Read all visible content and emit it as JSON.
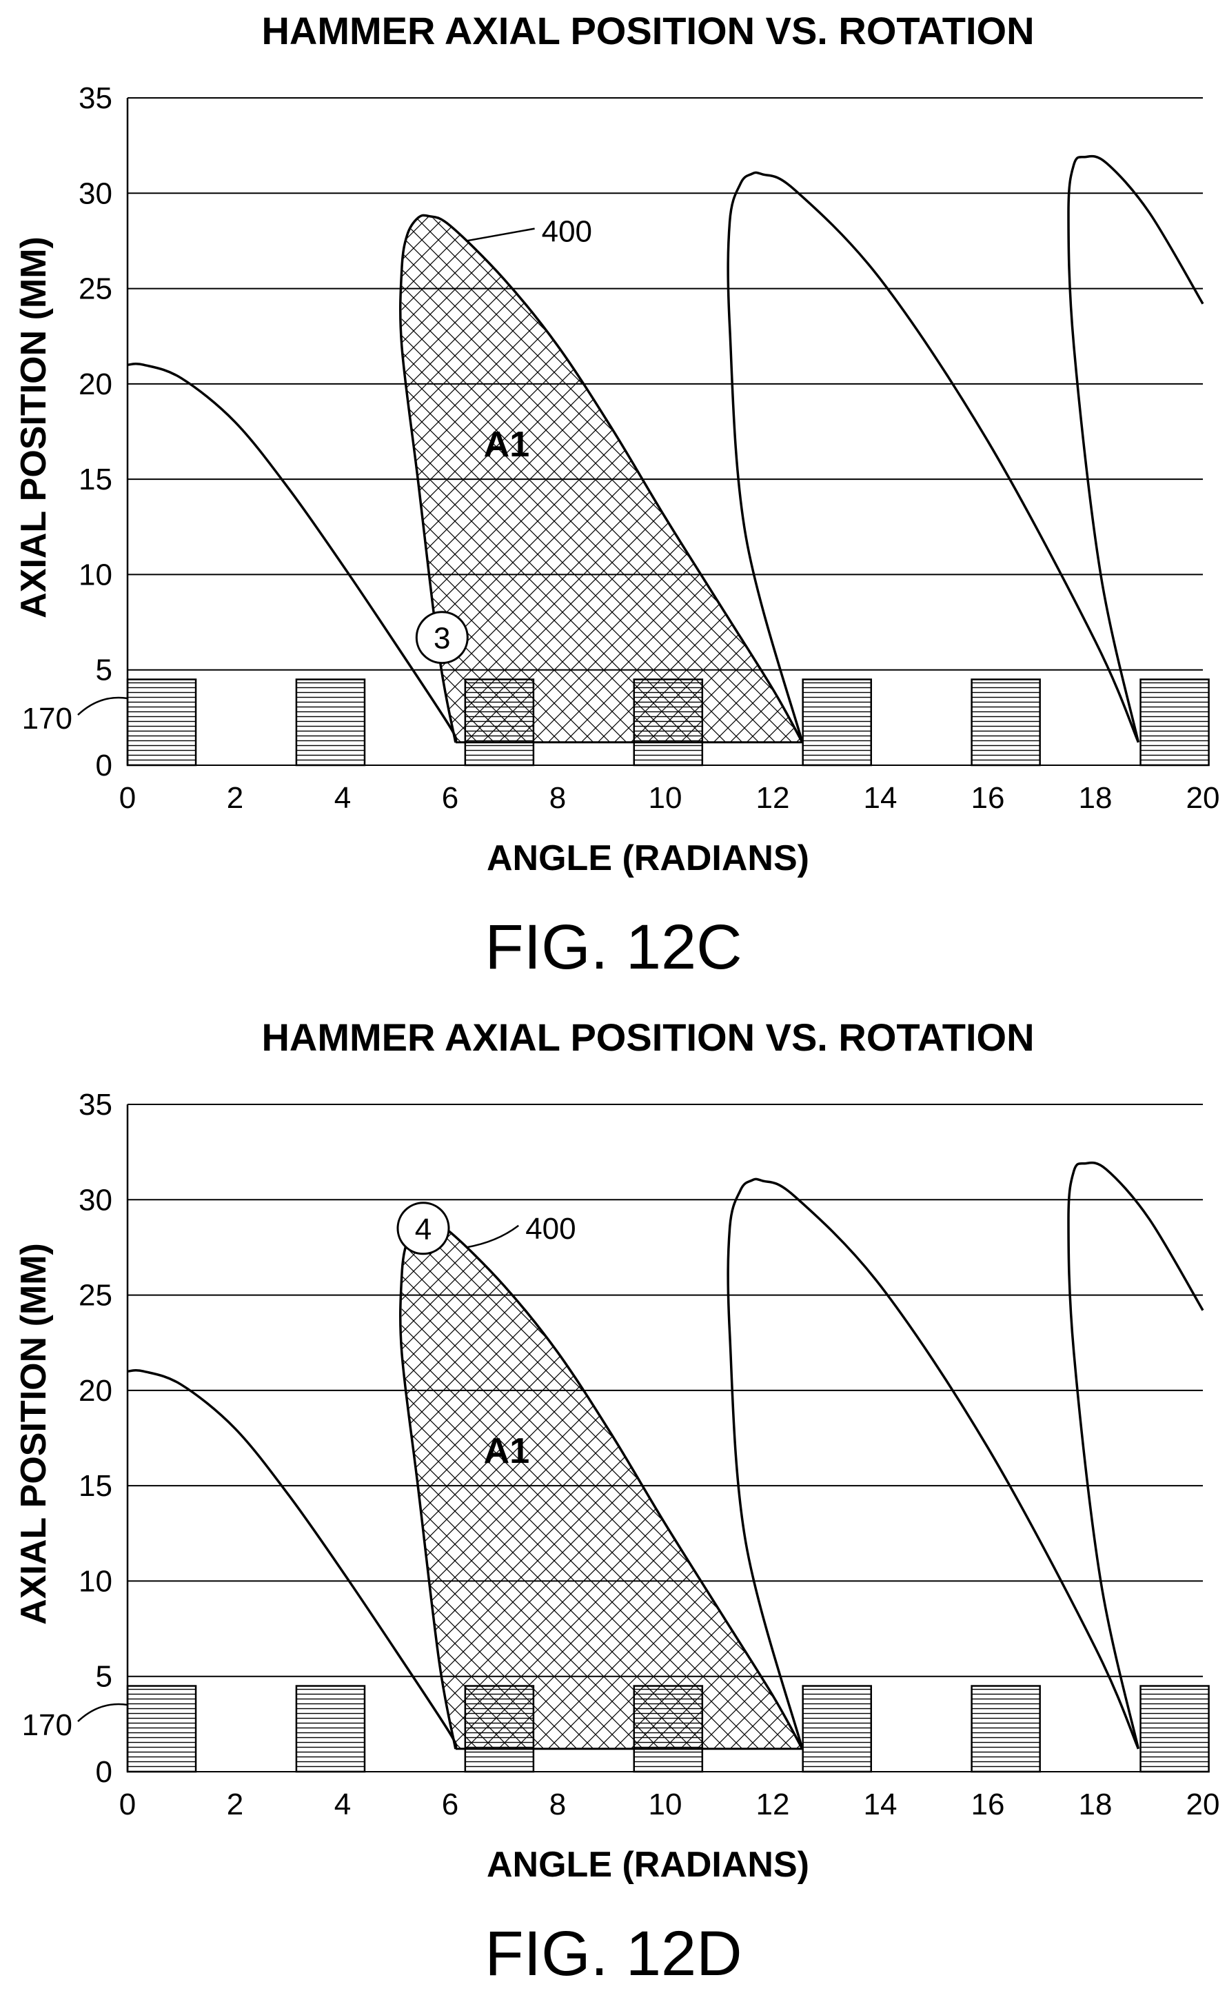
{
  "chart_data": [
    {
      "type": "line",
      "figure_label": "FIG. 12C",
      "title": "HAMMER AXIAL POSITION VS. ROTATION",
      "xlabel": "ANGLE (RADIANS)",
      "ylabel": "AXIAL POSITION (MM)",
      "xlim": [
        0,
        20
      ],
      "ylim": [
        0,
        35
      ],
      "xticks": [
        "0",
        "2",
        "4",
        "6",
        "8",
        "10",
        "12",
        "14",
        "16",
        "18",
        "20"
      ],
      "yticks": [
        "0",
        "5",
        "10",
        "15",
        "20",
        "25",
        "30",
        "35"
      ],
      "grid": "horizontal",
      "series": [
        {
          "x": [
            0,
            0.3,
            1,
            2,
            3,
            4,
            5,
            6,
            6.1
          ],
          "y": [
            21,
            21,
            20.3,
            18,
            14.5,
            10.5,
            6.3,
            2,
            1.2
          ]
        },
        {
          "x": [
            6.1,
            5.8,
            5.4,
            5.1,
            5.1,
            5.2,
            5.4,
            5.6,
            6,
            7,
            8,
            9,
            10,
            11,
            12,
            12.55
          ],
          "y": [
            1.2,
            5.7,
            15,
            22,
            26,
            27.8,
            28.7,
            28.8,
            28.3,
            25.5,
            22,
            17.7,
            13,
            8.5,
            4,
            1.2
          ]
        },
        {
          "x": [
            12.55,
            11.5,
            11.2,
            11.2,
            11.4,
            11.6,
            11.8,
            12.4,
            14,
            16,
            18,
            18.8
          ],
          "y": [
            1.2,
            12,
            23,
            28.5,
            30.5,
            31,
            31,
            30.2,
            25.5,
            17,
            6.5,
            1.2
          ]
        },
        {
          "x": [
            18.8,
            18.1,
            17.6,
            17.5,
            17.6,
            17.8,
            18.2,
            19,
            20
          ],
          "y": [
            1.2,
            10,
            22,
            29,
            31.5,
            31.9,
            31.6,
            29,
            24.2
          ]
        }
      ],
      "shaded_region": {
        "label": "A1",
        "x": [
          6.1,
          5.8,
          5.4,
          5.1,
          5.1,
          5.2,
          5.4,
          5.6,
          6,
          7,
          8,
          9,
          10,
          11,
          12,
          12.55,
          6.1
        ],
        "y": [
          1.2,
          5.7,
          15,
          22,
          26,
          27.8,
          28.7,
          28.8,
          28.3,
          25.5,
          22,
          17.7,
          13,
          8.5,
          4,
          1.2,
          1.2
        ]
      },
      "blocks": {
        "label": "170",
        "x_start": [
          0,
          3.14,
          6.28,
          9.42,
          12.56,
          15.7,
          18.84
        ],
        "width": 1.27,
        "height": 4.5
      },
      "annotations": [
        {
          "text": "400",
          "point_x": 6.3,
          "point_y": 27.5,
          "label_x": 7.7,
          "label_y": 28
        },
        {
          "text": "3",
          "marker": "circle",
          "x": 5.85,
          "y": 6.7
        }
      ]
    },
    {
      "type": "line",
      "figure_label": "FIG. 12D",
      "title": "HAMMER AXIAL POSITION VS. ROTATION",
      "xlabel": "ANGLE (RADIANS)",
      "ylabel": "AXIAL POSITION (MM)",
      "xlim": [
        0,
        20
      ],
      "ylim": [
        0,
        35
      ],
      "xticks": [
        "0",
        "2",
        "4",
        "6",
        "8",
        "10",
        "12",
        "14",
        "16",
        "18",
        "20"
      ],
      "yticks": [
        "0",
        "5",
        "10",
        "15",
        "20",
        "25",
        "30",
        "35"
      ],
      "grid": "horizontal",
      "series": [
        {
          "x": [
            0,
            0.3,
            1,
            2,
            3,
            4,
            5,
            6,
            6.1
          ],
          "y": [
            21,
            21,
            20.3,
            18,
            14.5,
            10.5,
            6.3,
            2,
            1.2
          ]
        },
        {
          "x": [
            6.1,
            5.8,
            5.4,
            5.1,
            5.1,
            5.2,
            5.4,
            5.6,
            6,
            7,
            8,
            9,
            10,
            11,
            12,
            12.55
          ],
          "y": [
            1.2,
            5.7,
            15,
            22,
            26,
            27.8,
            28.7,
            28.8,
            28.3,
            25.5,
            22,
            17.7,
            13,
            8.5,
            4,
            1.2
          ]
        },
        {
          "x": [
            12.55,
            11.5,
            11.2,
            11.2,
            11.4,
            11.6,
            11.8,
            12.4,
            14,
            16,
            18,
            18.8
          ],
          "y": [
            1.2,
            12,
            23,
            28.5,
            30.5,
            31,
            31,
            30.2,
            25.5,
            17,
            6.5,
            1.2
          ]
        },
        {
          "x": [
            18.8,
            18.1,
            17.6,
            17.5,
            17.6,
            17.8,
            18.2,
            19,
            20
          ],
          "y": [
            1.2,
            10,
            22,
            29,
            31.5,
            31.9,
            31.6,
            29,
            24.2
          ]
        }
      ],
      "shaded_region": {
        "label": "A1",
        "x": [
          6.1,
          5.8,
          5.4,
          5.1,
          5.1,
          5.2,
          5.4,
          5.6,
          6,
          7,
          8,
          9,
          10,
          11,
          12,
          12.55,
          6.1
        ],
        "y": [
          1.2,
          5.7,
          15,
          22,
          26,
          27.8,
          28.7,
          28.8,
          28.3,
          25.5,
          22,
          17.7,
          13,
          8.5,
          4,
          1.2,
          1.2
        ]
      },
      "blocks": {
        "label": "170",
        "x_start": [
          0,
          3.14,
          6.28,
          9.42,
          12.56,
          15.7,
          18.84
        ],
        "width": 1.27,
        "height": 4.5
      },
      "annotations": [
        {
          "text": "400",
          "point_x": 6.3,
          "point_y": 27.5,
          "label_x": 7.4,
          "label_y": 28.5
        },
        {
          "text": "4",
          "marker": "circle",
          "x": 5.5,
          "y": 28.5
        }
      ]
    }
  ],
  "colors": {
    "ink": "#000000",
    "background": "#ffffff"
  }
}
